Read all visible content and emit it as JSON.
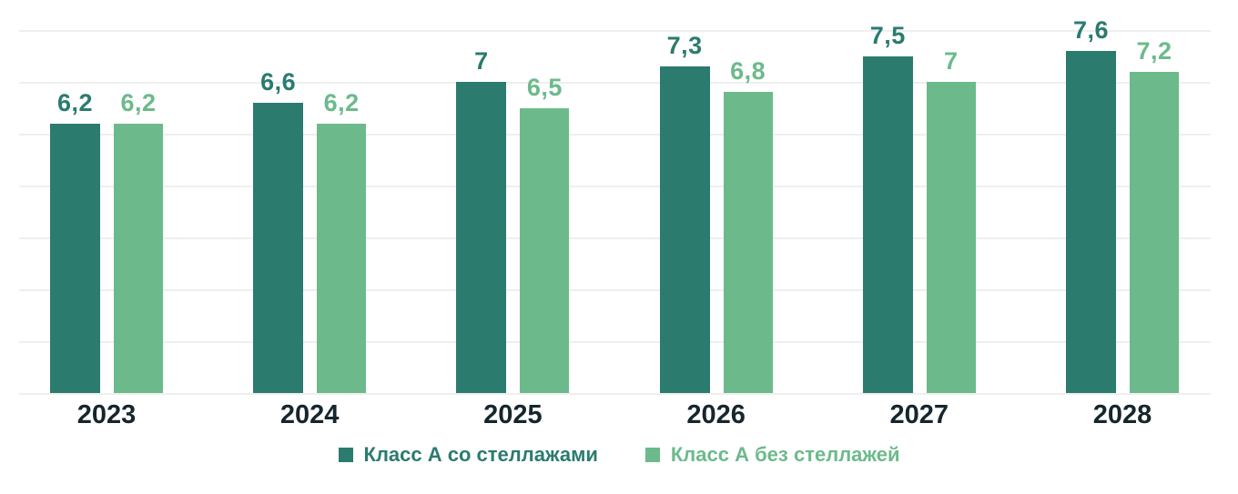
{
  "chart_data": {
    "type": "bar",
    "title": "",
    "xlabel": "",
    "ylabel": "",
    "categories": [
      "2023",
      "2024",
      "2025",
      "2026",
      "2027",
      "2028"
    ],
    "series": [
      {
        "name": "Класс А со стеллажами",
        "color": "#2B7B6F",
        "values": [
          6.2,
          6.6,
          7,
          7.3,
          7.5,
          7.6
        ],
        "labels": [
          "6,2",
          "6,6",
          "7",
          "7,3",
          "7,5",
          "7,6"
        ]
      },
      {
        "name": "Класс А без стеллажей",
        "color": "#6CBA8B",
        "values": [
          6.2,
          6.2,
          6.5,
          6.8,
          7,
          7.2
        ],
        "labels": [
          "6,2",
          "6,2",
          "6,5",
          "6,8",
          "7",
          "7,2"
        ]
      }
    ],
    "ylim": [
      1,
      8.5
    ],
    "grid": {
      "visible": true,
      "interval": 1,
      "color": "#EFEFEF"
    },
    "axis": {
      "tick_color": "#15262C"
    },
    "legend_position": "bottom",
    "value_labels_visible": true
  }
}
